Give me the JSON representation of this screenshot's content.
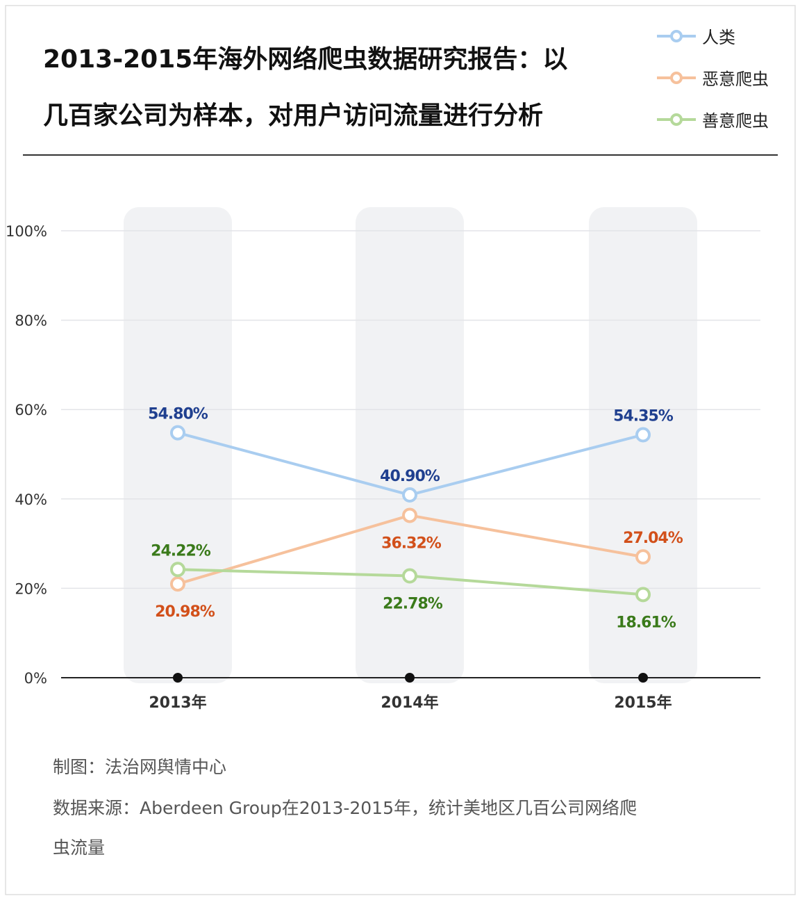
{
  "chart_data": {
    "type": "line",
    "title_lines": [
      "2013-2015年海外网络爬虫数据研究报告：以",
      "几百家公司为样本，对用户访问流量进行分析"
    ],
    "categories": [
      "2013年",
      "2014年",
      "2015年"
    ],
    "ylim": [
      0,
      100
    ],
    "yticks": [
      "0%",
      "20%",
      "40%",
      "60%",
      "80%",
      "100%"
    ],
    "grid": true,
    "legend_position": "top-right",
    "series": [
      {
        "name": "人类",
        "values": [
          54.8,
          40.9,
          54.35
        ],
        "labels": [
          "54.80%",
          "40.90%",
          "54.35%"
        ],
        "color": "#a9cdf0",
        "label_color": "#1f3f8f"
      },
      {
        "name": "恶意爬虫",
        "values": [
          20.98,
          36.32,
          27.04
        ],
        "labels": [
          "20.98%",
          "36.32%",
          "27.04%"
        ],
        "color": "#f6c19c",
        "label_color": "#d2501a"
      },
      {
        "name": "善意爬虫",
        "values": [
          24.22,
          22.78,
          18.61
        ],
        "labels": [
          "24.22%",
          "22.78%",
          "18.61%"
        ],
        "color": "#b5d99a",
        "label_color": "#3a7a1a"
      }
    ]
  },
  "footer": {
    "credit": "制图：法治网舆情中心",
    "source_line1": "数据来源：Aberdeen Group在2013-2015年，统计美地区几百公司网络爬",
    "source_line2": "虫流量"
  }
}
